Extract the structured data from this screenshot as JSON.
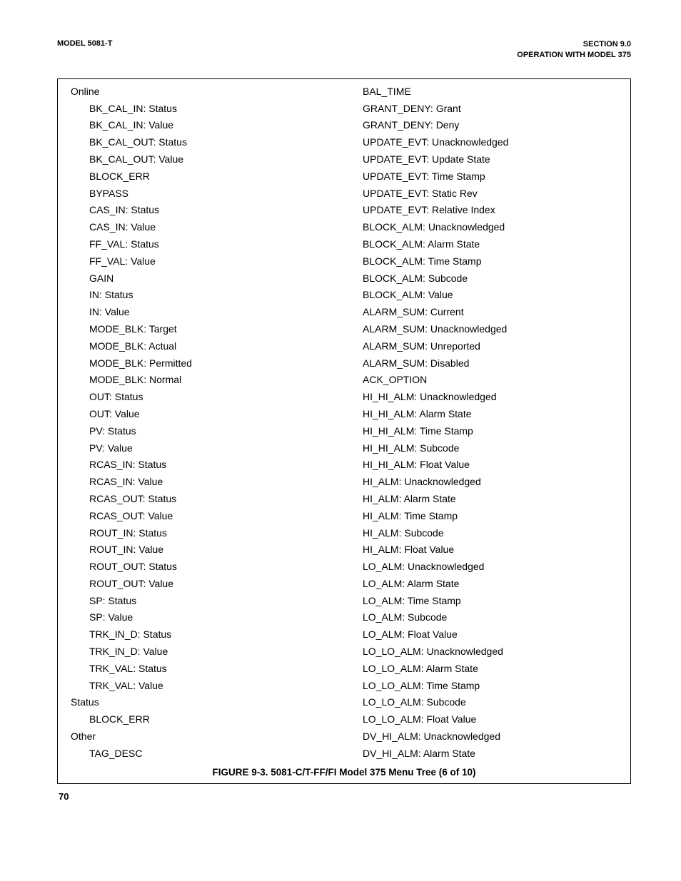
{
  "header": {
    "left": "MODEL 5081-T",
    "right_line1": "SECTION 9.0",
    "right_line2": "OPERATION WITH MODEL 375"
  },
  "left_col": [
    {
      "text": "Online",
      "level": 0
    },
    {
      "text": "BK_CAL_IN: Status",
      "level": 1
    },
    {
      "text": "BK_CAL_IN: Value",
      "level": 1
    },
    {
      "text": "BK_CAL_OUT: Status",
      "level": 1
    },
    {
      "text": "BK_CAL_OUT: Value",
      "level": 1
    },
    {
      "text": "BLOCK_ERR",
      "level": 1
    },
    {
      "text": "BYPASS",
      "level": 1
    },
    {
      "text": "CAS_IN: Status",
      "level": 1
    },
    {
      "text": "CAS_IN: Value",
      "level": 1
    },
    {
      "text": "FF_VAL: Status",
      "level": 1
    },
    {
      "text": "FF_VAL: Value",
      "level": 1
    },
    {
      "text": "GAIN",
      "level": 1
    },
    {
      "text": "IN: Status",
      "level": 1
    },
    {
      "text": "IN: Value",
      "level": 1
    },
    {
      "text": "MODE_BLK: Target",
      "level": 1
    },
    {
      "text": "MODE_BLK: Actual",
      "level": 1
    },
    {
      "text": "MODE_BLK: Permitted",
      "level": 1
    },
    {
      "text": "MODE_BLK: Normal",
      "level": 1
    },
    {
      "text": "OUT: Status",
      "level": 1
    },
    {
      "text": "OUT: Value",
      "level": 1
    },
    {
      "text": "PV: Status",
      "level": 1
    },
    {
      "text": "PV: Value",
      "level": 1
    },
    {
      "text": "RCAS_IN: Status",
      "level": 1
    },
    {
      "text": "RCAS_IN: Value",
      "level": 1
    },
    {
      "text": "RCAS_OUT: Status",
      "level": 1
    },
    {
      "text": "RCAS_OUT: Value",
      "level": 1
    },
    {
      "text": "ROUT_IN: Status",
      "level": 1
    },
    {
      "text": "ROUT_IN: Value",
      "level": 1
    },
    {
      "text": "ROUT_OUT: Status",
      "level": 1
    },
    {
      "text": "ROUT_OUT: Value",
      "level": 1
    },
    {
      "text": "SP: Status",
      "level": 1
    },
    {
      "text": "SP: Value",
      "level": 1
    },
    {
      "text": "TRK_IN_D: Status",
      "level": 1
    },
    {
      "text": "TRK_IN_D: Value",
      "level": 1
    },
    {
      "text": "TRK_VAL: Status",
      "level": 1
    },
    {
      "text": "TRK_VAL: Value",
      "level": 1
    },
    {
      "text": "Status",
      "level": 0
    },
    {
      "text": "BLOCK_ERR",
      "level": 1
    },
    {
      "text": "Other",
      "level": 0
    },
    {
      "text": "TAG_DESC",
      "level": 1
    }
  ],
  "right_col": [
    {
      "text": "BAL_TIME",
      "level": 1
    },
    {
      "text": "GRANT_DENY: Grant",
      "level": 1
    },
    {
      "text": "GRANT_DENY: Deny",
      "level": 1
    },
    {
      "text": "UPDATE_EVT: Unacknowledged",
      "level": 1
    },
    {
      "text": "UPDATE_EVT: Update State",
      "level": 1
    },
    {
      "text": "UPDATE_EVT: Time Stamp",
      "level": 1
    },
    {
      "text": "UPDATE_EVT: Static Rev",
      "level": 1
    },
    {
      "text": "UPDATE_EVT: Relative Index",
      "level": 1
    },
    {
      "text": "BLOCK_ALM: Unacknowledged",
      "level": 1
    },
    {
      "text": "BLOCK_ALM: Alarm State",
      "level": 1
    },
    {
      "text": "BLOCK_ALM: Time Stamp",
      "level": 1
    },
    {
      "text": "BLOCK_ALM: Subcode",
      "level": 1
    },
    {
      "text": "BLOCK_ALM: Value",
      "level": 1
    },
    {
      "text": "ALARM_SUM: Current",
      "level": 1
    },
    {
      "text": "ALARM_SUM: Unacknowledged",
      "level": 1
    },
    {
      "text": "ALARM_SUM: Unreported",
      "level": 1
    },
    {
      "text": "ALARM_SUM: Disabled",
      "level": 1
    },
    {
      "text": "ACK_OPTION",
      "level": 1
    },
    {
      "text": "HI_HI_ALM: Unacknowledged",
      "level": 1
    },
    {
      "text": "HI_HI_ALM: Alarm State",
      "level": 1
    },
    {
      "text": "HI_HI_ALM: Time Stamp",
      "level": 1
    },
    {
      "text": "HI_HI_ALM: Subcode",
      "level": 1
    },
    {
      "text": "HI_HI_ALM: Float Value",
      "level": 1
    },
    {
      "text": "HI_ALM: Unacknowledged",
      "level": 1
    },
    {
      "text": "HI_ALM: Alarm State",
      "level": 1
    },
    {
      "text": "HI_ALM: Time Stamp",
      "level": 1
    },
    {
      "text": "HI_ALM: Subcode",
      "level": 1
    },
    {
      "text": "HI_ALM: Float Value",
      "level": 1
    },
    {
      "text": "LO_ALM: Unacknowledged",
      "level": 1
    },
    {
      "text": "LO_ALM: Alarm State",
      "level": 1
    },
    {
      "text": "LO_ALM: Time Stamp",
      "level": 1
    },
    {
      "text": "LO_ALM: Subcode",
      "level": 1
    },
    {
      "text": "LO_ALM: Float Value",
      "level": 1
    },
    {
      "text": "LO_LO_ALM: Unacknowledged",
      "level": 1
    },
    {
      "text": "LO_LO_ALM: Alarm State",
      "level": 1
    },
    {
      "text": "LO_LO_ALM: Time Stamp",
      "level": 1
    },
    {
      "text": "LO_LO_ALM: Subcode",
      "level": 1
    },
    {
      "text": "LO_LO_ALM: Float Value",
      "level": 1
    },
    {
      "text": "DV_HI_ALM: Unacknowledged",
      "level": 1
    },
    {
      "text": "DV_HI_ALM: Alarm State",
      "level": 1
    }
  ],
  "figure_caption": "FIGURE 9-3. 5081-C/T-FF/FI Model 375 Menu Tree (6 of 10)",
  "page_number": "70"
}
